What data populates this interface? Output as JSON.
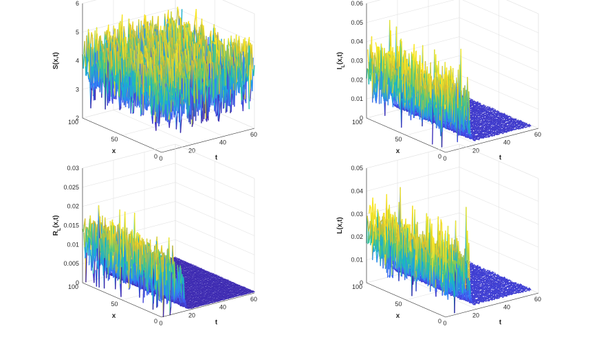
{
  "figure": {
    "colormap": [
      "#3e26a8",
      "#4353f2",
      "#2f88f7",
      "#16aed5",
      "#2bc49a",
      "#86cb53",
      "#dbba2e",
      "#f9e725"
    ]
  },
  "chart_data": [
    {
      "type": "surface",
      "title": "",
      "xlabel": "t",
      "ylabel": "x",
      "zlabel": "S(x,t)",
      "xlim": [
        0,
        60
      ],
      "ylim": [
        0,
        100
      ],
      "zlim": [
        2,
        6
      ],
      "xticks": [
        "0",
        "20",
        "40",
        "60"
      ],
      "yticks": [
        "0",
        "50",
        "100"
      ],
      "zticks": [
        "2",
        "3",
        "4",
        "5",
        "6"
      ],
      "profile": {
        "t_end": 60,
        "base": 3.9,
        "amp": 1.3,
        "decay_t": 0,
        "floor": 0
      }
    },
    {
      "type": "surface",
      "title": "",
      "xlabel": "t",
      "ylabel": "x",
      "zlabel": "I_L(x,t)",
      "zlabel_main": "I",
      "zlabel_sub": "L",
      "zlabel_tail": "(x,t)",
      "xlim": [
        0,
        60
      ],
      "ylim": [
        0,
        100
      ],
      "zlim": [
        0,
        0.06
      ],
      "xticks": [
        "0",
        "20",
        "40",
        "60"
      ],
      "yticks": [
        "0",
        "50",
        "100"
      ],
      "zticks": [
        "0",
        "0.01",
        "0.02",
        "0.03",
        "0.04",
        "0.05",
        "0.06"
      ],
      "profile": {
        "t_end": 55,
        "base": 0.025,
        "amp": 0.02,
        "decay_t": 15,
        "floor": 0.002
      }
    },
    {
      "type": "surface",
      "title": "",
      "xlabel": "t",
      "ylabel": "x",
      "zlabel": "R_L(x,t)",
      "zlabel_main": "R",
      "zlabel_sub": "L",
      "zlabel_tail": "(x,t)",
      "xlim": [
        0,
        60
      ],
      "ylim": [
        0,
        100
      ],
      "zlim": [
        0,
        0.03
      ],
      "xticks": [
        "0",
        "20",
        "40",
        "60"
      ],
      "yticks": [
        "0",
        "50",
        "100"
      ],
      "zticks": [
        "0",
        "0.005",
        "0.01",
        "0.015",
        "0.02",
        "0.025",
        "0.03"
      ],
      "profile": {
        "t_end": 60,
        "base": 0.011,
        "amp": 0.01,
        "decay_t": 14,
        "floor": 0.0003
      }
    },
    {
      "type": "surface",
      "title": "",
      "xlabel": "t",
      "ylabel": "x",
      "zlabel": "L(x,t)",
      "xlim": [
        0,
        60
      ],
      "ylim": [
        0,
        100
      ],
      "zlim": [
        0,
        0.05
      ],
      "xticks": [
        "0",
        "20",
        "40",
        "60"
      ],
      "yticks": [
        "0",
        "50",
        "100"
      ],
      "zticks": [
        "0",
        "0.01",
        "0.02",
        "0.03",
        "0.04",
        "0.05"
      ],
      "profile": {
        "t_end": 55,
        "base": 0.02,
        "amp": 0.016,
        "decay_t": 15,
        "floor": 0.002
      }
    }
  ]
}
